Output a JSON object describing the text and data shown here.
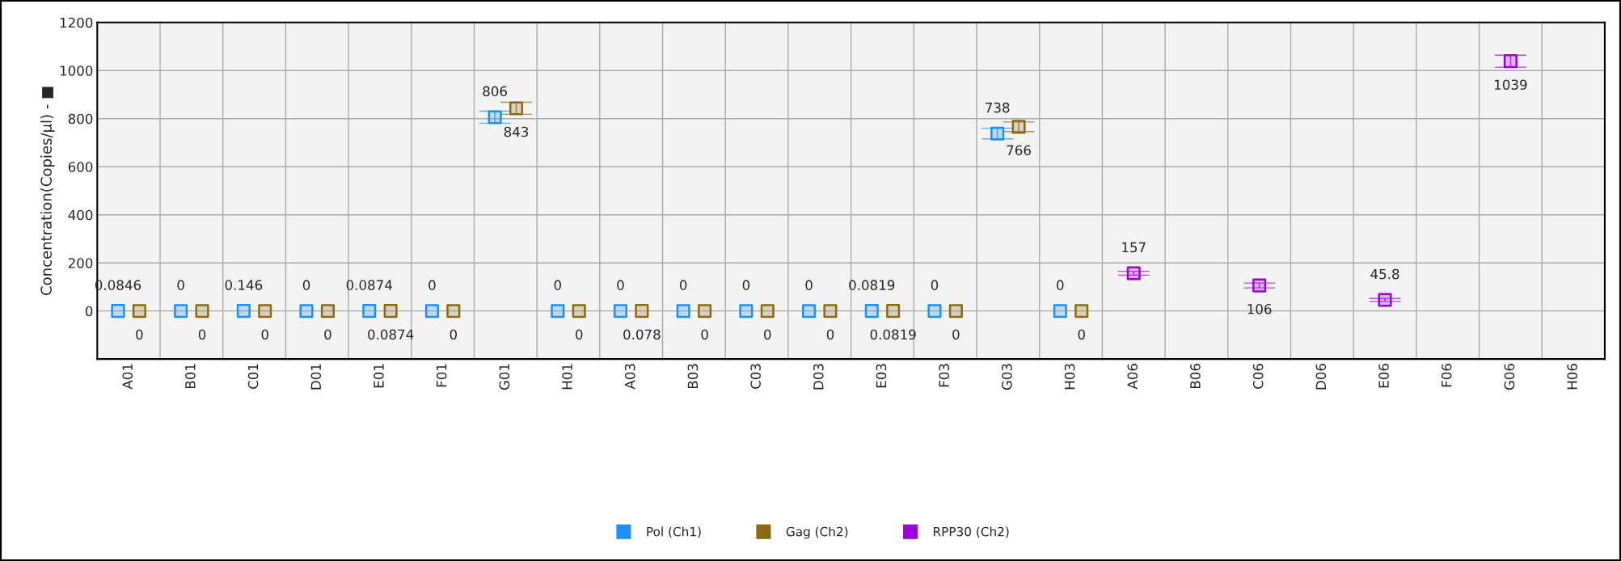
{
  "chart_data": {
    "type": "scatter",
    "ylabel": "Concentration(Copies/µl) - ■",
    "categories": [
      "A01",
      "B01",
      "C01",
      "D01",
      "E01",
      "F01",
      "G01",
      "H01",
      "A03",
      "B03",
      "C03",
      "D03",
      "E03",
      "F03",
      "G03",
      "H03",
      "A06",
      "B06",
      "C06",
      "D06",
      "E06",
      "F06",
      "G06",
      "H06"
    ],
    "ylim": [
      -200,
      1200
    ],
    "yticks": [
      0,
      200,
      400,
      600,
      800,
      1000,
      1200
    ],
    "grid": true,
    "legend": "bottom",
    "marker": "square",
    "series": [
      {
        "name": "Pol (Ch1)",
        "color": "#1e8fff",
        "values": [
          0.0846,
          0,
          0.146,
          0,
          0.0874,
          0,
          806,
          0,
          0,
          0,
          0,
          0,
          0.0819,
          0,
          738,
          0,
          null,
          null,
          null,
          null,
          null,
          null,
          null,
          null
        ],
        "errors": [
          null,
          null,
          null,
          null,
          null,
          null,
          25,
          null,
          null,
          null,
          null,
          null,
          null,
          null,
          22,
          null,
          null,
          null,
          null,
          null,
          null,
          null,
          null,
          null
        ],
        "value_labels": [
          "0.0846",
          "0",
          "0.146",
          "0",
          "0.0874",
          "0",
          "806",
          "0",
          "0",
          "0",
          "0",
          "0",
          "0.0819",
          "0",
          "738",
          "0",
          null,
          null,
          null,
          null,
          null,
          null,
          null,
          null
        ]
      },
      {
        "name": "Gag (Ch2)",
        "color": "#8b6a14",
        "values": [
          0,
          0,
          0,
          0,
          0.0874,
          0,
          843,
          0,
          0.078,
          0,
          0,
          0,
          0.0819,
          0,
          766,
          0,
          null,
          null,
          null,
          null,
          null,
          null,
          null,
          null
        ],
        "errors": [
          null,
          null,
          null,
          null,
          null,
          null,
          25,
          null,
          null,
          null,
          null,
          null,
          null,
          null,
          20,
          null,
          null,
          null,
          null,
          null,
          null,
          null,
          null,
          null
        ],
        "value_labels": [
          "0",
          "0",
          "0",
          "0",
          "0.0874",
          "0",
          "843",
          "0",
          "0.078",
          "0",
          "0",
          "0",
          "0.0819",
          "0",
          "766",
          "0",
          null,
          null,
          null,
          null,
          null,
          null,
          null,
          null
        ]
      },
      {
        "name": "RPP30 (Ch2)",
        "color": "#9b00d9",
        "values": [
          null,
          null,
          null,
          null,
          null,
          null,
          null,
          null,
          null,
          null,
          null,
          null,
          null,
          null,
          null,
          null,
          157,
          null,
          106,
          null,
          45.8,
          null,
          1039,
          null
        ],
        "errors": [
          null,
          null,
          null,
          null,
          null,
          null,
          null,
          null,
          null,
          null,
          null,
          null,
          null,
          null,
          null,
          null,
          8,
          null,
          10,
          null,
          6,
          null,
          25,
          null
        ],
        "value_labels": [
          null,
          null,
          null,
          null,
          null,
          null,
          null,
          null,
          null,
          null,
          null,
          null,
          null,
          null,
          null,
          null,
          "157",
          null,
          "106",
          null,
          "45.8",
          null,
          "1039",
          null
        ]
      }
    ]
  }
}
